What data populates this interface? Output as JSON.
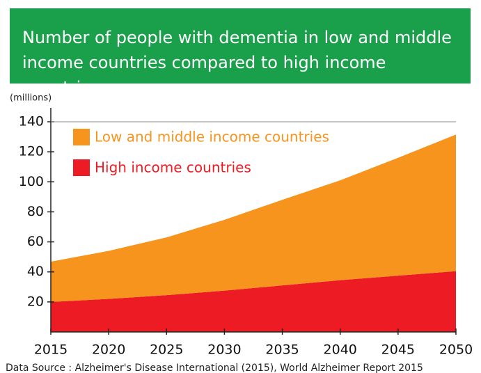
{
  "chart_data": {
    "type": "stacked_area",
    "title": "Number of people with dementia in low and middle income countries compared to high income countries",
    "y_label": "(millions)",
    "source": "Data Source : Alzheimer's Disease International (2015), World Alzheimer Report 2015",
    "x": [
      2015,
      2020,
      2025,
      2030,
      2035,
      2040,
      2045,
      2050
    ],
    "series": [
      {
        "name": "Low and middle income countries",
        "color": "#f7941d",
        "values": [
          26.8,
          32,
          38.5,
          47.2,
          57,
          66.5,
          78.5,
          91
        ]
      },
      {
        "name": "High income countries",
        "color": "#ed1c24",
        "values": [
          20,
          22,
          24.5,
          27.5,
          31,
          34.5,
          37.5,
          40.5
        ]
      }
    ],
    "xlim": [
      2015,
      2050
    ],
    "xticks": [
      2015,
      2020,
      2025,
      2030,
      2035,
      2040,
      2045,
      2050
    ],
    "ylim": [
      0,
      140
    ],
    "yticks": [
      20,
      40,
      60,
      80,
      100,
      120,
      140
    ],
    "legend": "upper left"
  }
}
